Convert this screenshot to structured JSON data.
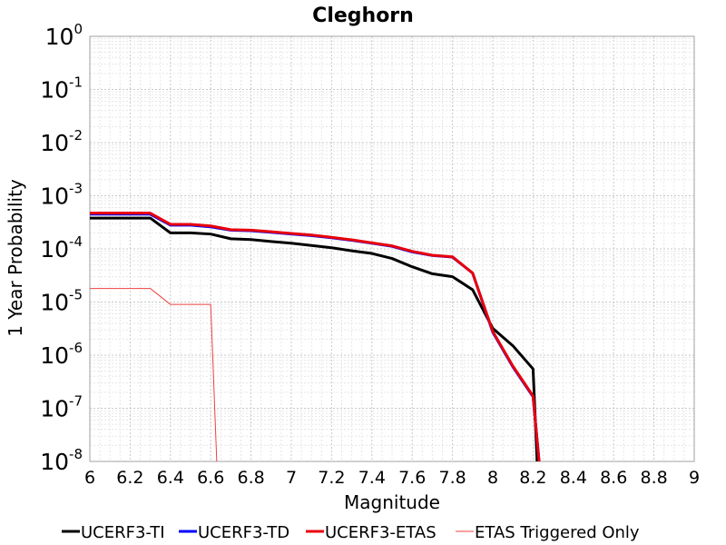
{
  "chart_data": {
    "type": "line",
    "title": "Cleghorn",
    "xlabel": "Magnitude",
    "ylabel": "1 Year Probability",
    "xlim": [
      6,
      9
    ],
    "ylim": [
      1e-08,
      1
    ],
    "yscale": "log",
    "grid": true,
    "legend_position": "bottom",
    "x_ticks": [
      "6",
      "6.2",
      "6.4",
      "6.6",
      "6.8",
      "7",
      "7.2",
      "7.4",
      "7.6",
      "7.8",
      "8",
      "8.2",
      "8.4",
      "8.6",
      "8.8",
      "9"
    ],
    "y_ticks": [
      {
        "base": "10",
        "exp": "0"
      },
      {
        "base": "10",
        "exp": "-1"
      },
      {
        "base": "10",
        "exp": "-2"
      },
      {
        "base": "10",
        "exp": "-3"
      },
      {
        "base": "10",
        "exp": "-4"
      },
      {
        "base": "10",
        "exp": "-5"
      },
      {
        "base": "10",
        "exp": "-6"
      },
      {
        "base": "10",
        "exp": "-7"
      },
      {
        "base": "10",
        "exp": "-8"
      }
    ],
    "series": [
      {
        "name": "UCERF3-TI",
        "color": "#000000",
        "x": [
          6.0,
          6.1,
          6.2,
          6.3,
          6.4,
          6.5,
          6.6,
          6.7,
          6.8,
          6.9,
          7.0,
          7.1,
          7.2,
          7.3,
          7.4,
          7.5,
          7.6,
          7.7,
          7.8,
          7.9,
          8.0,
          8.1,
          8.2,
          8.22
        ],
        "y": [
          0.00038,
          0.00038,
          0.00038,
          0.00038,
          0.0002,
          0.0002,
          0.00019,
          0.000155,
          0.00015,
          0.000138,
          0.000128,
          0.000116,
          0.000105,
          9.2e-05,
          8.2e-05,
          6.6e-05,
          4.6e-05,
          3.4e-05,
          3e-05,
          1.7e-05,
          3.2e-06,
          1.5e-06,
          5.5e-07,
          1e-08
        ]
      },
      {
        "name": "UCERF3-TD",
        "color": "#0000ff",
        "x": [
          6.0,
          6.1,
          6.2,
          6.3,
          6.4,
          6.5,
          6.6,
          6.7,
          6.8,
          6.9,
          7.0,
          7.1,
          7.2,
          7.3,
          7.4,
          7.5,
          7.6,
          7.7,
          7.8,
          7.9,
          8.0,
          8.1,
          8.2,
          8.23
        ],
        "y": [
          0.00045,
          0.00045,
          0.00045,
          0.00045,
          0.00028,
          0.00028,
          0.00026,
          0.000225,
          0.00022,
          0.000205,
          0.00019,
          0.000178,
          0.000162,
          0.000145,
          0.000128,
          0.000112,
          8.8e-05,
          7.5e-05,
          7e-05,
          3.5e-05,
          2.7e-06,
          6e-07,
          1.65e-07,
          1e-08
        ]
      },
      {
        "name": "UCERF3-ETAS",
        "color": "#e8000b",
        "x": [
          6.0,
          6.1,
          6.2,
          6.3,
          6.4,
          6.5,
          6.6,
          6.7,
          6.8,
          6.9,
          7.0,
          7.1,
          7.2,
          7.3,
          7.4,
          7.5,
          7.6,
          7.7,
          7.8,
          7.9,
          8.0,
          8.1,
          8.2,
          8.23
        ],
        "y": [
          0.00047,
          0.00047,
          0.00047,
          0.00047,
          0.00029,
          0.00029,
          0.00027,
          0.00023,
          0.000225,
          0.00021,
          0.000195,
          0.000182,
          0.000165,
          0.000148,
          0.00013,
          0.000114,
          9e-05,
          7.6e-05,
          7.1e-05,
          3.5e-05,
          2.8e-06,
          6.2e-07,
          1.7e-07,
          1e-08
        ]
      },
      {
        "name": "ETAS Triggered Only",
        "color": "#f04040",
        "x": [
          6.0,
          6.1,
          6.2,
          6.3,
          6.4,
          6.5,
          6.6,
          6.63
        ],
        "y": [
          1.8e-05,
          1.8e-05,
          1.8e-05,
          1.8e-05,
          9e-06,
          9e-06,
          9e-06,
          1e-08
        ]
      }
    ]
  }
}
